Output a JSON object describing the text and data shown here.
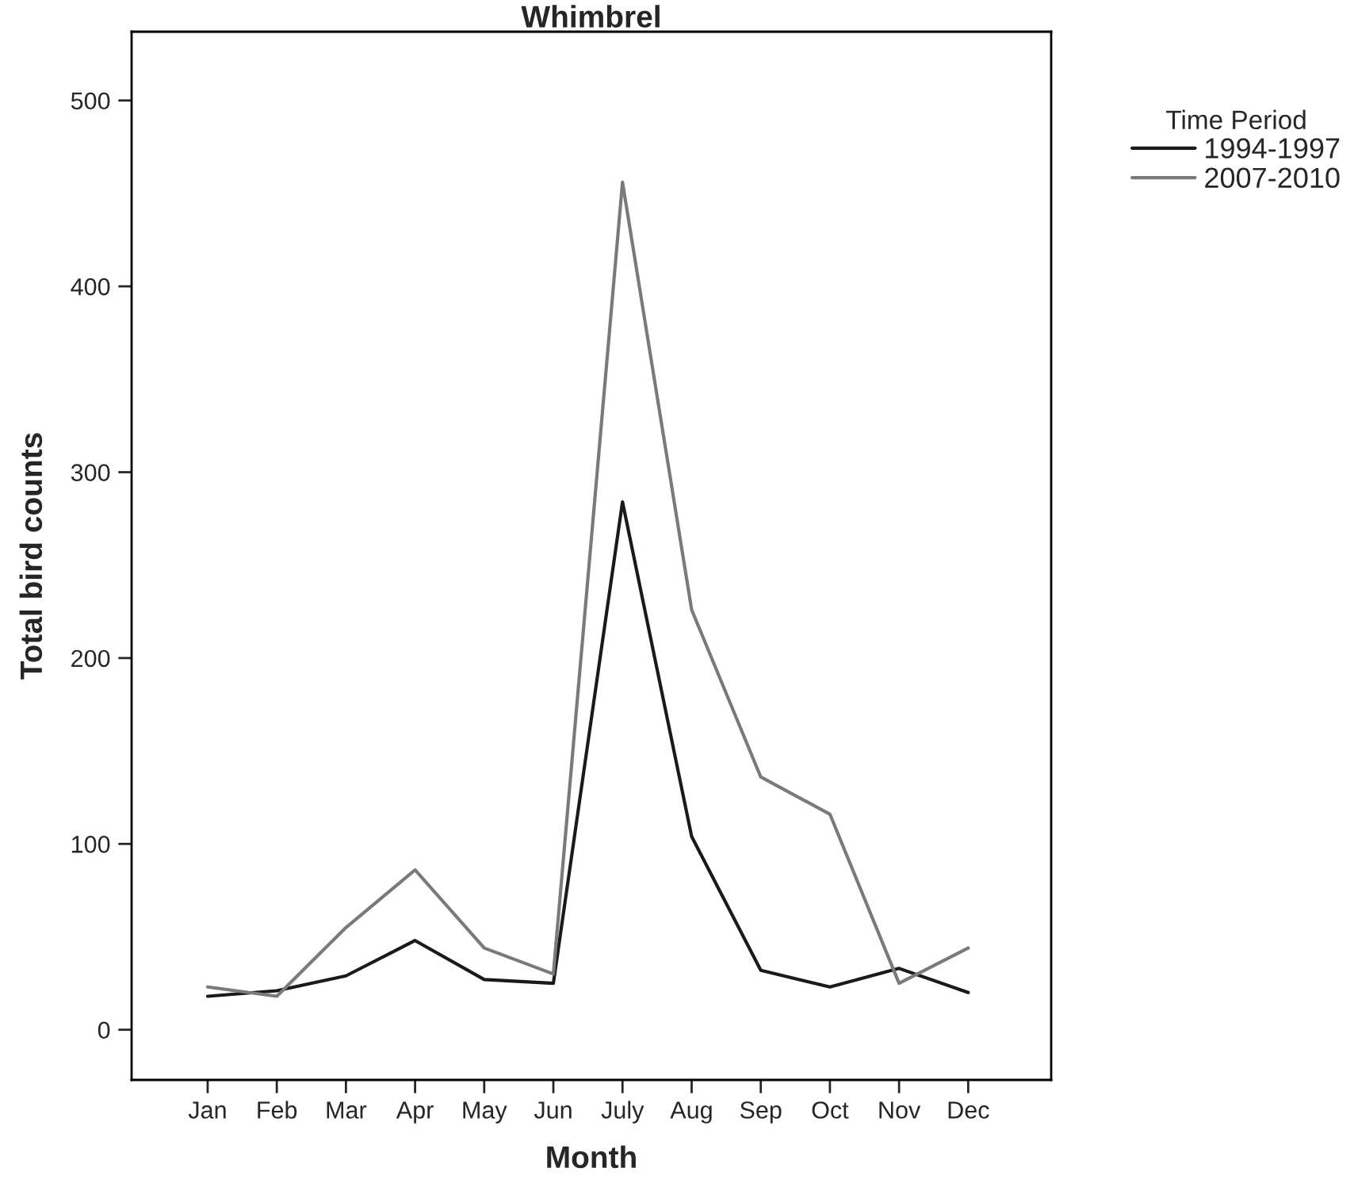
{
  "chart_data": {
    "type": "line",
    "title": "Whimbrel",
    "xlabel": "Month",
    "ylabel": "Total bird counts",
    "legend_title": "Time Period",
    "categories": [
      "Jan",
      "Feb",
      "Mar",
      "Apr",
      "May",
      "Jun",
      "July",
      "Aug",
      "Sep",
      "Oct",
      "Nov",
      "Dec"
    ],
    "series": [
      {
        "name": "1994-1997",
        "color": "#1a1a1a",
        "values": [
          18,
          21,
          29,
          48,
          27,
          25,
          284,
          104,
          32,
          23,
          33,
          20
        ]
      },
      {
        "name": "2007-2010",
        "color": "#7a7a7a",
        "values": [
          23,
          18,
          55,
          86,
          44,
          30,
          456,
          226,
          136,
          116,
          25,
          44
        ]
      }
    ],
    "ylim": [
      -27,
      537
    ],
    "yticks": [
      0,
      100,
      200,
      300,
      400,
      500
    ],
    "grid": false,
    "legend": "top right",
    "marker": "none",
    "line_style": "solid"
  }
}
